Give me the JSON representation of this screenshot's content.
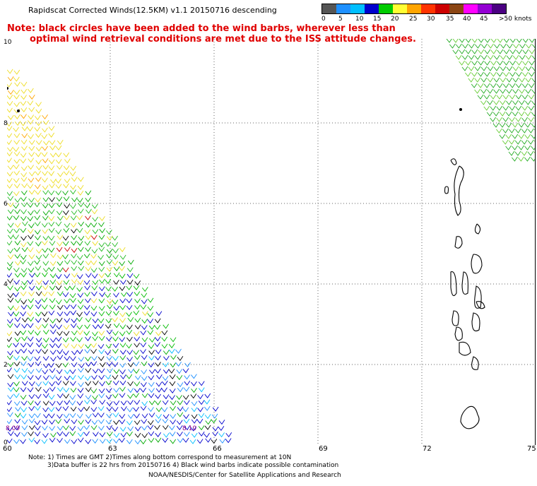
{
  "header": {
    "title": "Rapidscat Corrected Winds(12.5KM) v1.1 20150716 descending",
    "note_line1": "Note: black circles have been added to the wind barbs, wherever less than",
    "note_line2": "optimal wind retrieval conditions are met due to the ISS attitude changes."
  },
  "legend": {
    "colors": [
      "#555555",
      "#1e90ff",
      "#00bfff",
      "#0000cd",
      "#00cc00",
      "#ffff33",
      "#ffa500",
      "#ff3300",
      "#cc0000",
      "#8b4513",
      "#ff00ff",
      "#9400d3",
      "#4b0082"
    ],
    "labels": [
      "0",
      "5",
      "10",
      "15",
      "20",
      "25",
      "30",
      "35",
      "40",
      "45",
      ">50 knots"
    ]
  },
  "axes": {
    "lat_labels": [
      "10",
      "8",
      "6",
      "4",
      "2",
      "0"
    ],
    "lon_labels": [
      "60",
      "63",
      "66",
      "69",
      "72",
      "75"
    ]
  },
  "markers": {
    "left_time": "8.09",
    "mid_time": "8.10"
  },
  "footer": {
    "note1": "Note: 1) Times are GMT 2)Times along bottom correspond to measurement at 10N",
    "note2": "3)Data buffer is 22 hrs from 20150716 4) Black wind barbs indicate possible contamination",
    "credit": "NOAA/NESDIS/Center for Satellite Applications and Research"
  }
}
